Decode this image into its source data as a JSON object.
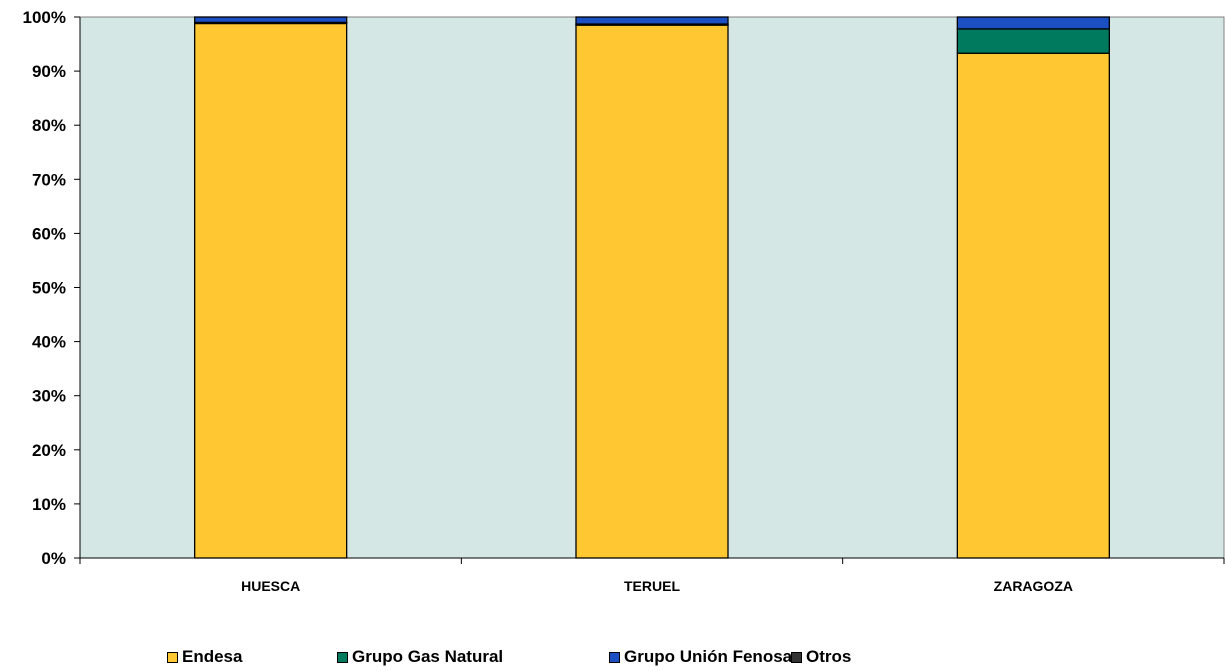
{
  "chart_data": {
    "type": "bar",
    "stacked": true,
    "percent_stacked": true,
    "categories": [
      "HUESCA",
      "TERUEL",
      "ZARAGOZA"
    ],
    "series": [
      {
        "name": "Endesa",
        "color": "#FFC832",
        "values": [
          98.8,
          98.5,
          93.3
        ]
      },
      {
        "name": "Grupo Gas Natural",
        "color": "#007A5E",
        "values": [
          0.2,
          0.2,
          4.5
        ]
      },
      {
        "name": "Grupo Unión Fenosa",
        "color": "#1C4FC2",
        "values": [
          1.0,
          1.3,
          2.2
        ]
      },
      {
        "name": "Otros",
        "color": "#333333",
        "values": [
          0.0,
          0.0,
          0.0
        ]
      }
    ],
    "y_ticks": [
      "0%",
      "10%",
      "20%",
      "30%",
      "40%",
      "50%",
      "60%",
      "70%",
      "80%",
      "90%",
      "100%"
    ],
    "ylim": [
      0,
      100
    ],
    "plot_background": "#D4E7E4",
    "grid": false,
    "legend_position": "bottom"
  }
}
